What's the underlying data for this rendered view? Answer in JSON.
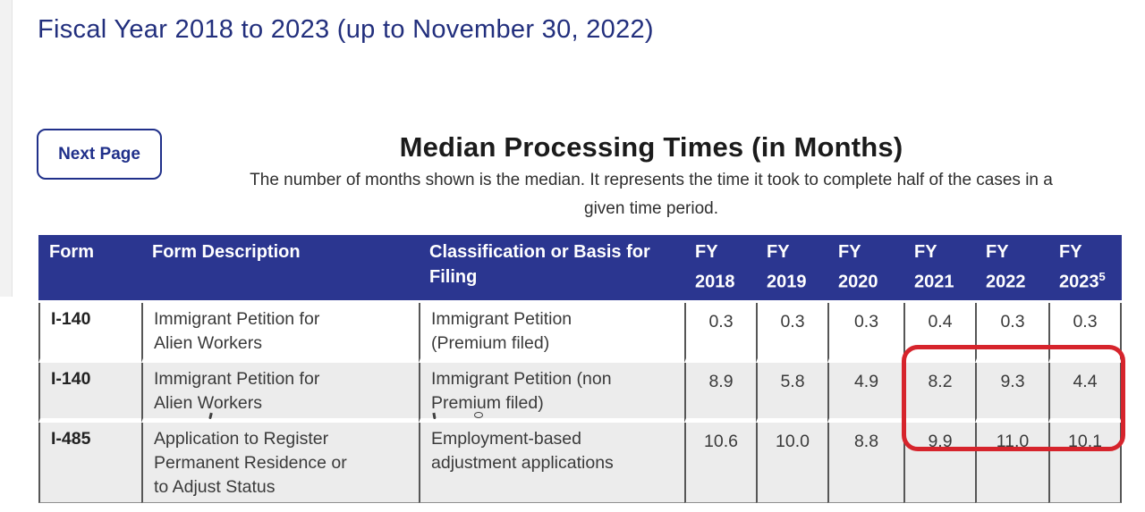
{
  "page": {
    "title": "Fiscal Year 2018 to 2023 (up to November 30, 2022)",
    "next_page_label": "Next Page",
    "heading": "Median Processing Times (in Months)",
    "subtitle_line1": "The number of months shown is the median. It represents the time it took to complete half of the cases in a",
    "subtitle_line2": "given time period."
  },
  "table": {
    "columns": {
      "form": "Form",
      "description": "Form Description",
      "classification": "Classification or Basis for Filing"
    },
    "fiscal_years": [
      {
        "label": "FY 2018",
        "sup": ""
      },
      {
        "label": "FY 2019",
        "sup": ""
      },
      {
        "label": "FY 2020",
        "sup": ""
      },
      {
        "label": "FY 2021",
        "sup": ""
      },
      {
        "label": "FY 2022",
        "sup": ""
      },
      {
        "label": "FY 2023",
        "sup": "5"
      }
    ],
    "rows": [
      {
        "form": "I-140",
        "description": "Immigrant Petition for Alien Workers",
        "classification": "Immigrant Petition (Premium filed)",
        "values": [
          "0.3",
          "0.3",
          "0.3",
          "0.4",
          "0.3",
          "0.3"
        ],
        "shaded": false
      },
      {
        "form": "I-140",
        "description": "Immigrant Petition for Alien Workers",
        "classification": "Immigrant Petition (non Premium filed)",
        "values": [
          "8.9",
          "5.8",
          "4.9",
          "8.2",
          "9.3",
          "4.4"
        ],
        "shaded": true
      },
      {
        "form": "I-485",
        "description": "Application to Register Permanent Residence or to Adjust Status",
        "classification": "Employment-based adjustment applications",
        "values": [
          "10.6",
          "10.0",
          "8.8",
          "9.9",
          "11.0",
          "10.1"
        ],
        "shaded": true
      }
    ]
  },
  "annotation": {
    "type": "red-rounded-rectangle",
    "color": "#d6242c",
    "covers_columns": [
      "FY 2021",
      "FY 2022",
      "FY 2023"
    ],
    "covers_rows": [
      "I-140 (non Premium filed)",
      "I-485"
    ]
  },
  "colors": {
    "header_bg": "#2b3690",
    "title_blue": "#222f7d",
    "button_blue": "#20308a",
    "annotation_red": "#d6242c",
    "shaded_row": "#ececec"
  }
}
